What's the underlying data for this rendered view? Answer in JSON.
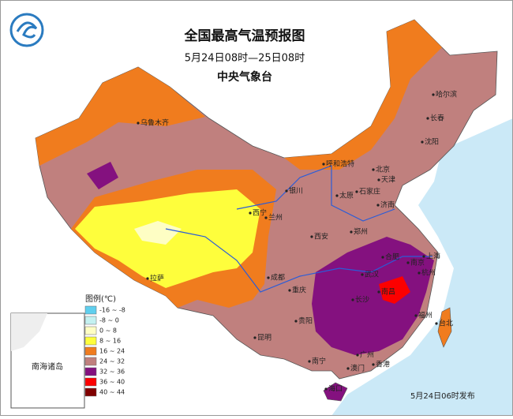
{
  "header": {
    "title": "全国最高气温预报图",
    "subtitle": "5月24日08时—25日08时",
    "agency": "中央气象台"
  },
  "legend": {
    "title": "图例(℃)",
    "items": [
      {
        "label": "-16 ~ -8",
        "color": "#5fcfee"
      },
      {
        "label": "-8 ~ 0",
        "color": "#c4f1f1"
      },
      {
        "label": "0 ~ 8",
        "color": "#fefec4"
      },
      {
        "label": "8 ~ 16",
        "color": "#fefe3c"
      },
      {
        "label": "16 ~ 24",
        "color": "#f07c1e"
      },
      {
        "label": "24 ~ 32",
        "color": "#c0807e"
      },
      {
        "label": "32 ~ 36",
        "color": "#84117f"
      },
      {
        "label": "36 ~ 40",
        "color": "#fc0000"
      },
      {
        "label": "40 ~ 44",
        "color": "#800000"
      }
    ]
  },
  "cities": [
    {
      "label": "乌鲁木齐"
    },
    {
      "label": "哈尔滨"
    },
    {
      "label": "长春"
    },
    {
      "label": "沈阳"
    },
    {
      "label": "呼和浩特"
    },
    {
      "label": "北京"
    },
    {
      "label": "天津"
    },
    {
      "label": "石家庄"
    },
    {
      "label": "太原"
    },
    {
      "label": "银川"
    },
    {
      "label": "兰州"
    },
    {
      "label": "西宁"
    },
    {
      "label": "济南"
    },
    {
      "label": "郑州"
    },
    {
      "label": "西安"
    },
    {
      "label": "南京"
    },
    {
      "label": "合肥"
    },
    {
      "label": "上海"
    },
    {
      "label": "杭州"
    },
    {
      "label": "武汉"
    },
    {
      "label": "成都"
    },
    {
      "label": "拉萨"
    },
    {
      "label": "重庆"
    },
    {
      "label": "长沙"
    },
    {
      "label": "南昌"
    },
    {
      "label": "福州"
    },
    {
      "label": "贵阳"
    },
    {
      "label": "台北"
    },
    {
      "label": "昆明"
    },
    {
      "label": "南宁"
    },
    {
      "label": "广州"
    },
    {
      "label": "香港"
    },
    {
      "label": "澳门"
    },
    {
      "label": "海口"
    }
  ],
  "inset": {
    "label": "南海诸岛"
  },
  "footer": {
    "note": "5月24日06时发布"
  }
}
